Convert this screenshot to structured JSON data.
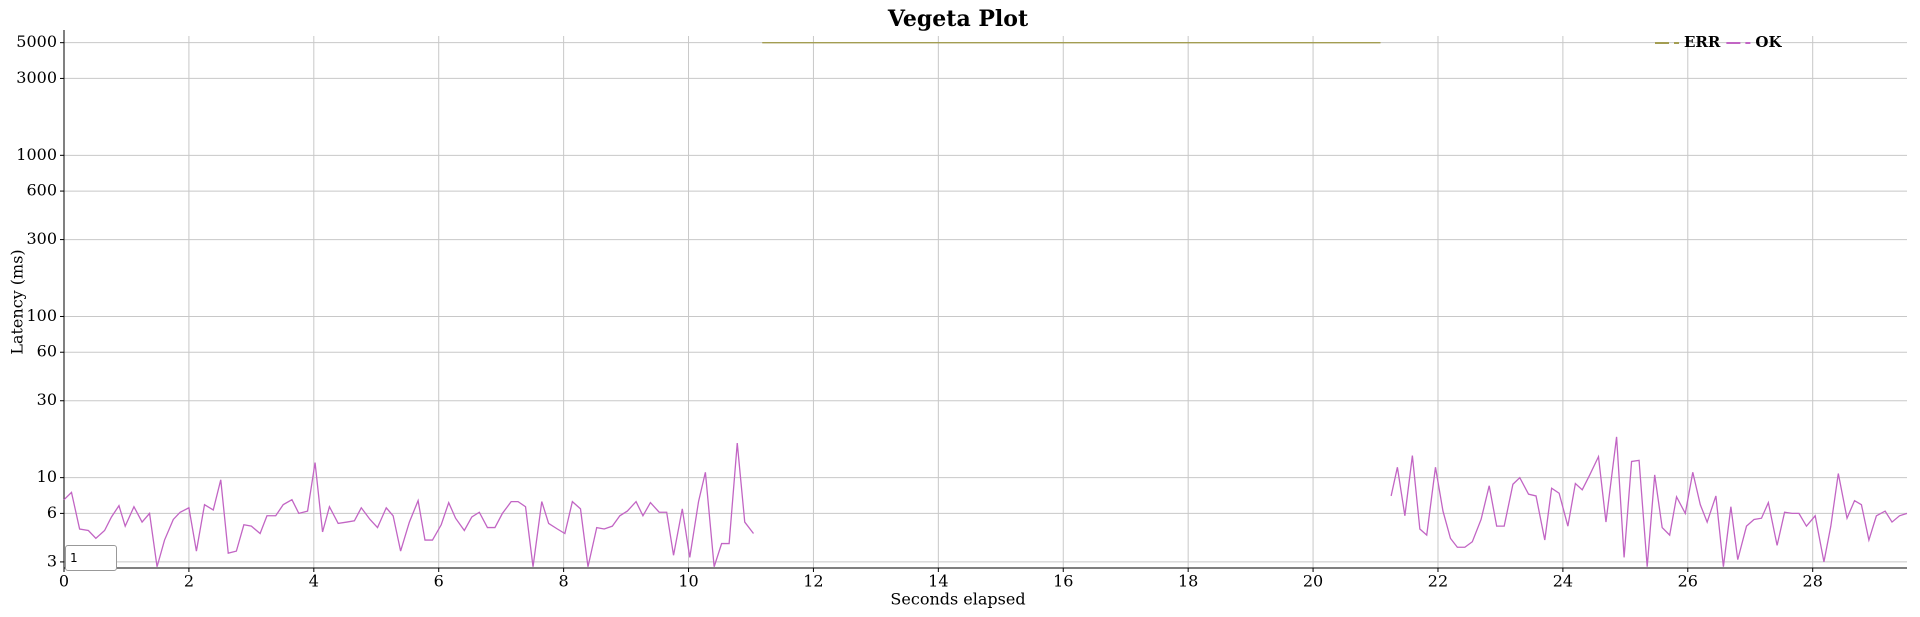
{
  "chart_data": {
    "type": "line",
    "title": "Vegeta Plot",
    "x_label": "Seconds elapsed",
    "y_label": "Latency (ms)",
    "logscale": true,
    "grid": true,
    "legend": "top-right",
    "roll_period": 1,
    "xlim": [
      0,
      29.51
    ],
    "xticks": [
      0,
      2,
      4,
      6,
      8,
      10,
      12,
      14,
      16,
      18,
      20,
      22,
      24,
      26,
      28
    ],
    "ylim": [
      2.75,
      5500
    ],
    "yticks": [
      3,
      6,
      10,
      30,
      60,
      100,
      300,
      600,
      1000,
      3000,
      5000
    ],
    "series": [
      {
        "name": "ERR",
        "color": "#a39d52",
        "x": [
          11.18,
          21.08
        ],
        "values": [
          5000,
          5000
        ]
      },
      {
        "name": "OK",
        "color": "#c265c4",
        "x": [
          0,
          0.12,
          0.25,
          0.39,
          0.51,
          0.65,
          0.76,
          0.88,
          0.98,
          1.12,
          1.25,
          1.37,
          1.49,
          1.61,
          1.75,
          1.86,
          2.0,
          2.12,
          2.25,
          2.39,
          2.51,
          2.63,
          2.76,
          2.88,
          3.0,
          3.14,
          3.25,
          3.39,
          3.51,
          3.65,
          3.76,
          3.9,
          4.02,
          4.14,
          4.25,
          4.39,
          4.53,
          4.65,
          4.76,
          4.9,
          5.02,
          5.16,
          5.27,
          5.39,
          5.53,
          5.67,
          5.78,
          5.9,
          6.04,
          6.16,
          6.27,
          6.41,
          6.53,
          6.65,
          6.78,
          6.9,
          7.02,
          7.16,
          7.27,
          7.39,
          7.51,
          7.65,
          7.76,
          7.9,
          8.02,
          8.14,
          8.27,
          8.39,
          8.53,
          8.65,
          8.78,
          8.9,
          9.02,
          9.16,
          9.27,
          9.39,
          9.53,
          9.65,
          9.76,
          9.9,
          10.02,
          10.16,
          10.27,
          10.41,
          10.53,
          10.65,
          10.78,
          10.9,
          11.04,
          null,
          21.25,
          21.35,
          21.47,
          21.59,
          21.71,
          21.82,
          21.96,
          22.08,
          22.2,
          22.31,
          22.43,
          22.55,
          22.69,
          22.82,
          22.94,
          23.06,
          23.2,
          23.31,
          23.45,
          23.57,
          23.71,
          23.82,
          23.94,
          24.08,
          24.2,
          24.31,
          24.43,
          24.57,
          24.69,
          24.86,
          24.98,
          25.1,
          25.22,
          25.35,
          25.47,
          25.59,
          25.71,
          25.82,
          25.96,
          26.08,
          26.2,
          26.31,
          26.45,
          26.57,
          26.69,
          26.8,
          26.94,
          27.06,
          27.18,
          27.29,
          27.43,
          27.55,
          27.67,
          27.78,
          27.9,
          28.04,
          28.18,
          28.29,
          28.41,
          28.55,
          28.67,
          28.78,
          28.9,
          29.02,
          29.16,
          29.27,
          29.39,
          29.51
        ],
        "values": [
          7.3,
          8.1,
          4.8,
          4.7,
          4.2,
          4.7,
          5.7,
          6.7,
          5.0,
          6.6,
          5.3,
          6.0,
          2.8,
          4.1,
          5.5,
          6.1,
          6.5,
          3.5,
          6.8,
          6.3,
          9.7,
          3.4,
          3.5,
          5.1,
          5.0,
          4.5,
          5.8,
          5.8,
          6.8,
          7.3,
          6.0,
          6.2,
          12.4,
          4.6,
          6.6,
          5.2,
          5.3,
          5.4,
          6.5,
          5.5,
          4.9,
          6.5,
          5.8,
          3.5,
          5.3,
          7.2,
          4.1,
          4.1,
          5.1,
          7.0,
          5.6,
          4.7,
          5.7,
          6.1,
          4.9,
          4.9,
          6.0,
          7.1,
          7.1,
          6.6,
          2.8,
          7.1,
          5.2,
          4.8,
          4.5,
          7.1,
          6.4,
          2.8,
          4.9,
          4.8,
          5.0,
          5.8,
          6.2,
          7.1,
          5.8,
          7.0,
          6.1,
          6.1,
          3.3,
          6.4,
          3.2,
          7.1,
          10.8,
          2.8,
          3.9,
          3.9,
          16.4,
          5.3,
          4.5,
          null,
          7.7,
          11.6,
          5.8,
          13.7,
          4.8,
          4.4,
          11.6,
          6.2,
          4.2,
          3.7,
          3.7,
          4.0,
          5.5,
          8.9,
          5.0,
          5.0,
          9.1,
          10.0,
          7.9,
          7.7,
          4.1,
          8.6,
          8.0,
          5.0,
          9.2,
          8.4,
          10.4,
          13.5,
          5.3,
          17.9,
          3.2,
          12.6,
          12.8,
          2.8,
          10.4,
          4.9,
          4.4,
          7.6,
          6.0,
          10.8,
          6.8,
          5.3,
          7.7,
          2.8,
          6.6,
          3.1,
          5.0,
          5.5,
          5.6,
          7.0,
          3.8,
          6.1,
          6.0,
          6.0,
          5.0,
          5.8,
          3.0,
          5.0,
          10.6,
          5.6,
          7.2,
          6.8,
          4.1,
          5.8,
          6.2,
          5.3,
          5.8,
          6.0
        ]
      }
    ]
  }
}
